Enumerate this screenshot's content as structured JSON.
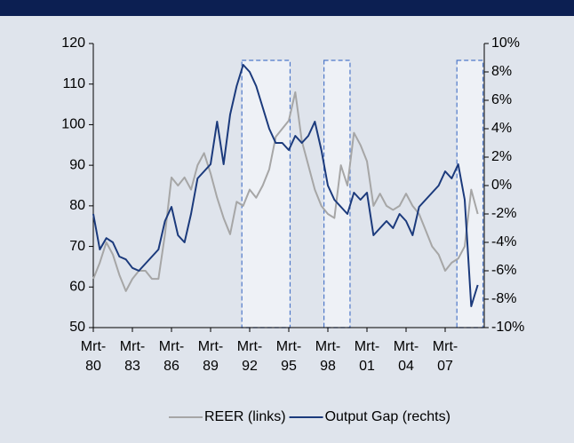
{
  "chart_data": {
    "type": "line",
    "x": [
      1980,
      1980.5,
      1981,
      1981.5,
      1982,
      1982.5,
      1983,
      1983.5,
      1984,
      1984.5,
      1985,
      1985.5,
      1986,
      1986.5,
      1987,
      1987.5,
      1988,
      1988.5,
      1989,
      1989.5,
      1990,
      1990.5,
      1991,
      1991.5,
      1992,
      1992.5,
      1993,
      1993.5,
      1994,
      1994.5,
      1995,
      1995.5,
      1996,
      1996.5,
      1997,
      1997.5,
      1998,
      1998.5,
      1999,
      1999.5,
      2000,
      2000.5,
      2001,
      2001.5,
      2002,
      2002.5,
      2003,
      2003.5,
      2004,
      2004.5,
      2005,
      2005.5,
      2006,
      2006.5,
      2007,
      2007.5,
      2008,
      2008.5,
      2009,
      2009.5
    ],
    "series": [
      {
        "name": "REER (links)",
        "color": "#a6a6a6",
        "axis": "y",
        "values": [
          62,
          66,
          71,
          68,
          63,
          59,
          62,
          64,
          64,
          62,
          62,
          73,
          87,
          85,
          87,
          84,
          90,
          93,
          88,
          82,
          77,
          73,
          81,
          80,
          84,
          82,
          85,
          89,
          97,
          99,
          101,
          108,
          96,
          90,
          84,
          80,
          78,
          77,
          90,
          85,
          98,
          95,
          91,
          80,
          83,
          80,
          79,
          80,
          83,
          80,
          78,
          74,
          70,
          68,
          64,
          66,
          67,
          70,
          84,
          78
        ]
      },
      {
        "name": "Output Gap (rechts)",
        "color": "#1b3a7c",
        "axis": "y2",
        "values": [
          -2.0,
          -4.5,
          -3.7,
          -4.0,
          -5.0,
          -5.2,
          -5.8,
          -6.0,
          -5.5,
          -5.0,
          -4.5,
          -2.5,
          -1.5,
          -3.5,
          -4.0,
          -2.0,
          0.5,
          1.0,
          1.5,
          4.5,
          1.5,
          5.0,
          7.0,
          8.5,
          8.0,
          7.0,
          5.5,
          4.0,
          3.0,
          3.0,
          2.5,
          3.5,
          3.0,
          3.5,
          4.5,
          2.5,
          0.0,
          -1.0,
          -1.5,
          -2.0,
          -0.5,
          -1.0,
          -0.5,
          -3.5,
          -3.0,
          -2.5,
          -3.0,
          -2.0,
          -2.5,
          -3.5,
          -1.5,
          -1.0,
          -0.5,
          0.0,
          1.0,
          0.5,
          1.5,
          -1.0,
          -8.5,
          -7.0
        ]
      }
    ],
    "xlim": [
      1980,
      2010
    ],
    "xticks": [
      {
        "value": 1980,
        "label": "Mrt-80"
      },
      {
        "value": 1983,
        "label": "Mrt-83"
      },
      {
        "value": 1986,
        "label": "Mrt-86"
      },
      {
        "value": 1989,
        "label": "Mrt-89"
      },
      {
        "value": 1992,
        "label": "Mrt-92"
      },
      {
        "value": 1995,
        "label": "Mrt-95"
      },
      {
        "value": 1998,
        "label": "Mrt-98"
      },
      {
        "value": 2001,
        "label": "Mrt-01"
      },
      {
        "value": 2004,
        "label": "Mrt-04"
      },
      {
        "value": 2007,
        "label": "Mrt-07"
      }
    ],
    "ylim": [
      50,
      120
    ],
    "yticks": [
      50,
      60,
      70,
      80,
      90,
      100,
      110,
      120
    ],
    "y2lim": [
      -10,
      10
    ],
    "y2ticks": [
      {
        "value": -10,
        "label": "-10%"
      },
      {
        "value": -8,
        "label": "-8%"
      },
      {
        "value": -6,
        "label": "-6%"
      },
      {
        "value": -4,
        "label": "-4%"
      },
      {
        "value": -2,
        "label": "-2%"
      },
      {
        "value": 0,
        "label": "0%"
      },
      {
        "value": 2,
        "label": "2%"
      },
      {
        "value": 4,
        "label": "4%"
      },
      {
        "value": 6,
        "label": "6%"
      },
      {
        "value": 8,
        "label": "8%"
      },
      {
        "value": 10,
        "label": "10%"
      }
    ],
    "shaded_periods": [
      [
        1991.4,
        1995.1
      ],
      [
        1997.7,
        1999.7
      ],
      [
        2007.9,
        2009.9
      ]
    ],
    "legend": "bottom"
  }
}
